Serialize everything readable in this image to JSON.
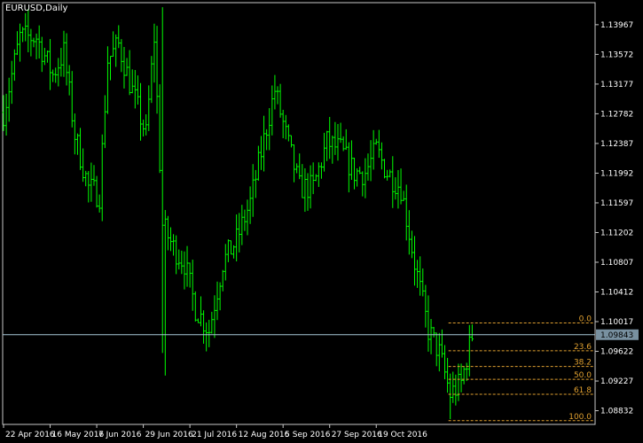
{
  "title": "EURUSD,Daily",
  "colors": {
    "background": "#000000",
    "frame": "#c8c8c8",
    "bar": "#00ff00",
    "text": "#ffffff",
    "fib": "#e0a030",
    "hline": "#a8c8d8",
    "price_box": "#7890a0"
  },
  "chart_data": {
    "type": "ohlc",
    "symbol": "EURUSD",
    "timeframe": "Daily",
    "ylim": [
      1.0865,
      1.1426
    ],
    "y_ticks": [
      "1.13967",
      "1.13572",
      "1.13177",
      "1.12782",
      "1.12387",
      "1.11992",
      "1.11597",
      "1.11202",
      "1.10807",
      "1.10412",
      "1.10017",
      "1.09622",
      "1.09227",
      "1.08832"
    ],
    "x_ticks": [
      "22 Apr 2016",
      "16 May 2016",
      "7 Jun 2016",
      "29 Jun 2016",
      "21 Jul 2016",
      "12 Aug 2016",
      "5 Sep 2016",
      "27 Sep 2016",
      "19 Oct 2016"
    ],
    "current_price": "1.09843",
    "anchors": [
      [
        0,
        1.128
      ],
      [
        6,
        1.138
      ],
      [
        12,
        1.138
      ],
      [
        18,
        1.133
      ],
      [
        22,
        1.136
      ],
      [
        26,
        1.125
      ],
      [
        31,
        1.118
      ],
      [
        35,
        1.117
      ],
      [
        38,
        1.135
      ],
      [
        42,
        1.137
      ],
      [
        46,
        1.132
      ],
      [
        52,
        1.125
      ],
      [
        55,
        1.138
      ],
      [
        58,
        1.113
      ],
      [
        62,
        1.11
      ],
      [
        66,
        1.108
      ],
      [
        70,
        1.102
      ],
      [
        75,
        1.099
      ],
      [
        80,
        1.108
      ],
      [
        85,
        1.111
      ],
      [
        90,
        1.116
      ],
      [
        96,
        1.126
      ],
      [
        99,
        1.131
      ],
      [
        103,
        1.125
      ],
      [
        108,
        1.118
      ],
      [
        113,
        1.118
      ],
      [
        118,
        1.124
      ],
      [
        123,
        1.123
      ],
      [
        128,
        1.12
      ],
      [
        132,
        1.12
      ],
      [
        136,
        1.123
      ],
      [
        140,
        1.12
      ],
      [
        145,
        1.118
      ],
      [
        150,
        1.108
      ],
      [
        155,
        1.099
      ],
      [
        159,
        1.096
      ],
      [
        163,
        1.0905
      ],
      [
        167,
        1.092
      ],
      [
        171,
        1.0984
      ]
    ],
    "fibonacci": [
      {
        "label": "0.0",
        "value": 1.1
      },
      {
        "label": "23.6",
        "value": 1.0963
      },
      {
        "label": "38.2",
        "value": 1.0942
      },
      {
        "label": "50.0",
        "value": 1.0925
      },
      {
        "label": "61.8",
        "value": 1.0905
      },
      {
        "label": "100.0",
        "value": 1.087
      }
    ]
  }
}
